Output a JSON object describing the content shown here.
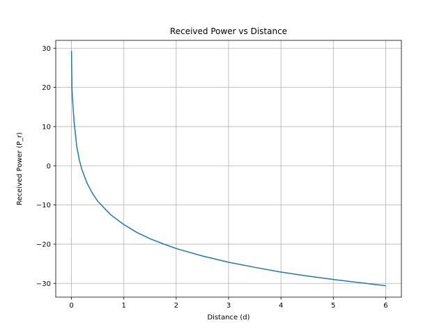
{
  "chart_data": {
    "type": "line",
    "title": "Received Power vs Distance",
    "xlabel": "Distance (d)",
    "ylabel": "Received Power (P_r)",
    "xlim": [
      -0.3,
      6.3
    ],
    "ylim": [
      -33.5,
      32.0
    ],
    "xticks": [
      0,
      1,
      2,
      3,
      4,
      5,
      6
    ],
    "yticks": [
      -30,
      -20,
      -10,
      0,
      10,
      20,
      30
    ],
    "xtick_labels": [
      "0",
      "1",
      "2",
      "3",
      "4",
      "5",
      "6"
    ],
    "ytick_labels": [
      "−30",
      "−20",
      "−10",
      "0",
      "10",
      "20",
      "30"
    ],
    "grid": true,
    "series": [
      {
        "color": "#1f77b4",
        "x": [
          0.001,
          0.01,
          0.02,
          0.05,
          0.1,
          0.15,
          0.2,
          0.3,
          0.4,
          0.5,
          0.75,
          1.0,
          1.25,
          1.5,
          1.75,
          2.0,
          2.5,
          3.0,
          3.5,
          4.0,
          4.5,
          5.0,
          5.5,
          6.0
        ],
        "y": [
          29.3,
          19.8,
          16.9,
          11.3,
          5.0,
          1.5,
          -1.0,
          -4.5,
          -7.0,
          -9.0,
          -12.5,
          -15.0,
          -17.0,
          -18.6,
          -19.9,
          -21.1,
          -23.0,
          -24.6,
          -25.9,
          -27.1,
          -28.1,
          -29.0,
          -29.8,
          -30.6
        ]
      }
    ]
  }
}
